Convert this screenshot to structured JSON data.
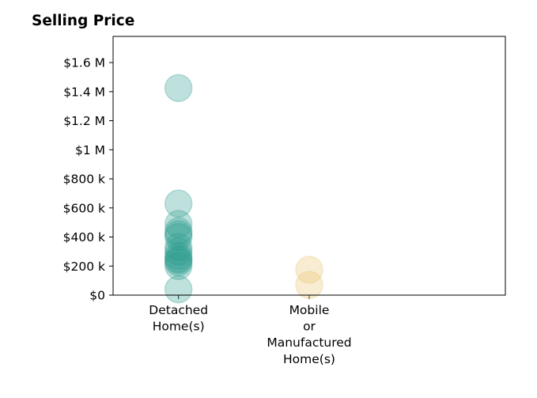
{
  "chart_data": {
    "type": "scatter",
    "title": "Selling Price",
    "xlabel": "",
    "ylabel": "",
    "categories": [
      [
        "Detached",
        "Home(s)"
      ],
      [
        "Mobile",
        "or",
        "Manufactured",
        "Home(s)"
      ]
    ],
    "xlim": [
      -0.5,
      2.5
    ],
    "ylim": [
      0,
      1780000
    ],
    "yticks": [
      {
        "value": 0,
        "label": "$0"
      },
      {
        "value": 200000,
        "label": "$200 k"
      },
      {
        "value": 400000,
        "label": "$400 k"
      },
      {
        "value": 600000,
        "label": "$600 k"
      },
      {
        "value": 800000,
        "label": "$800 k"
      },
      {
        "value": 1000000,
        "label": "$1 M"
      },
      {
        "value": 1200000,
        "label": "$1.2 M"
      },
      {
        "value": 1400000,
        "label": "$1.4 M"
      },
      {
        "value": 1600000,
        "label": "$1.6 M"
      }
    ],
    "grid": false,
    "series": [
      {
        "color": "#2a9d8f",
        "x": 0,
        "values": [
          1425000,
          630000,
          490000,
          440000,
          420000,
          400000,
          330000,
          300000,
          270000,
          250000,
          240000,
          225000,
          200000,
          40000
        ]
      },
      {
        "color": "#e9c46a",
        "x": 1,
        "values": [
          175000,
          70000
        ]
      }
    ]
  }
}
